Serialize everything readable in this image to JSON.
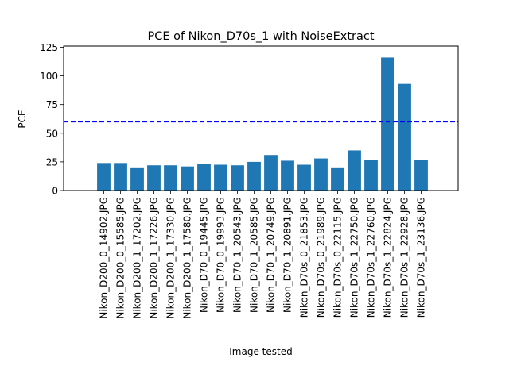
{
  "chart_data": {
    "type": "bar",
    "title": "PCE of Nikon_D70s_1 with NoiseExtract",
    "xlabel": "Image tested",
    "ylabel": "PCE",
    "ylim": [
      0,
      126
    ],
    "yticks": [
      0,
      25,
      50,
      75,
      100,
      125
    ],
    "grid": false,
    "bar_color": "#1f77b4",
    "threshold": {
      "value": 60,
      "color": "#0000ff",
      "style": "dashed"
    },
    "categories": [
      "Nikon_D200_0_14902.JPG",
      "Nikon_D200_0_15585.JPG",
      "Nikon_D200_1_17202.JPG",
      "Nikon_D200_1_17226.JPG",
      "Nikon_D200_1_17330.JPG",
      "Nikon_D200_1_17580.JPG",
      "Nikon_D70_0_19445.JPG",
      "Nikon_D70_0_19993.JPG",
      "Nikon_D70_1_20543.JPG",
      "Nikon_D70_1_20585.JPG",
      "Nikon_D70_1_20749.JPG",
      "Nikon_D70_1_20891.JPG",
      "Nikon_D70s_0_21853.JPG",
      "Nikon_D70s_0_21989.JPG",
      "Nikon_D70s_0_22115.JPG",
      "Nikon_D70s_1_22750.JPG",
      "Nikon_D70s_1_22760.JPG",
      "Nikon_D70s_1_22824.JPG",
      "Nikon_D70s_1_22928.JPG",
      "Nikon_D70s_1_23136.JPG"
    ],
    "values": [
      24,
      24,
      19.5,
      22,
      22,
      21,
      23,
      22.5,
      22,
      25,
      31,
      26,
      22.5,
      28,
      19.5,
      35,
      26.5,
      116,
      93,
      27
    ]
  }
}
